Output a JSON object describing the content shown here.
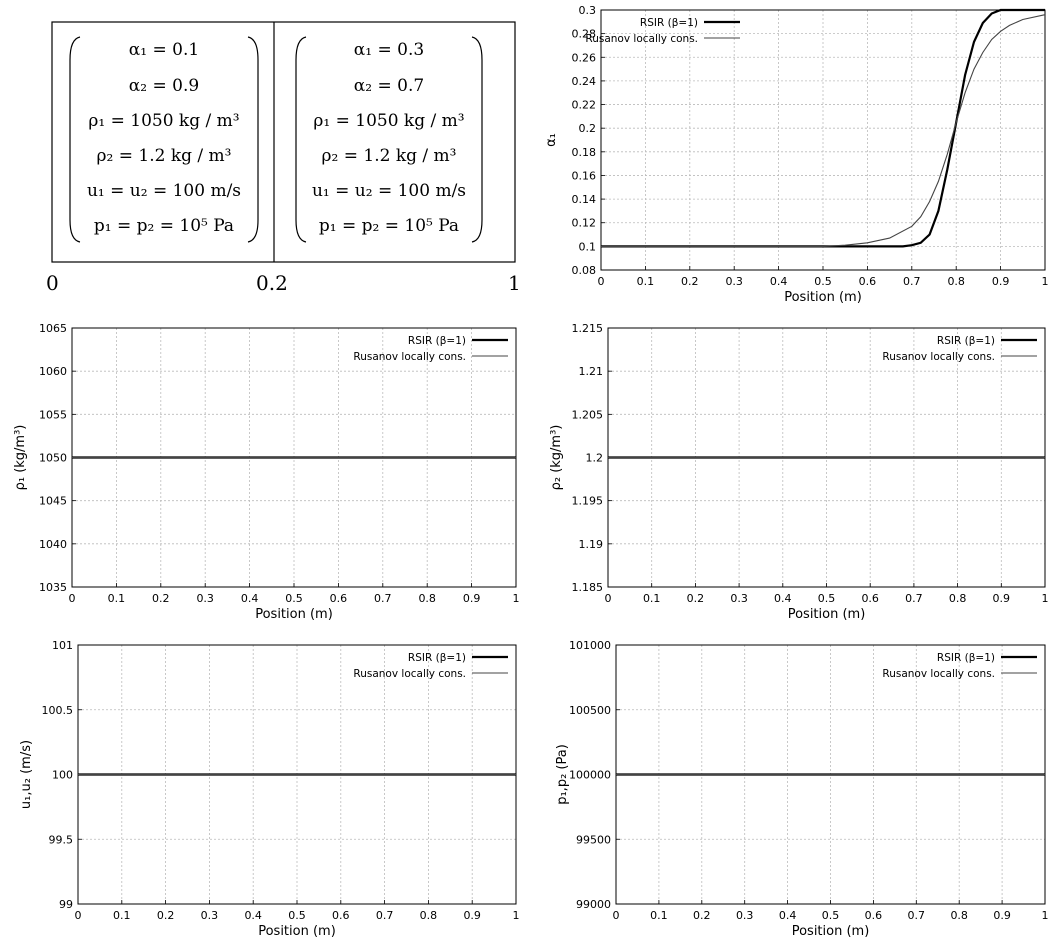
{
  "initial_condition": {
    "left_state": {
      "lines": [
        "α₁ = 0.1",
        "α₂ = 0.9",
        "ρ₁ = 1050 kg / m³",
        "ρ₂ = 1.2 kg / m³",
        "u₁ = u₂ = 100 m/s",
        "p₁ = p₂ = 10⁵ Pa"
      ]
    },
    "right_state": {
      "lines": [
        "α₁ = 0.3",
        "α₂ = 0.7",
        "ρ₁ = 1050 kg / m³",
        "ρ₂ = 1.2 kg / m³",
        "u₁ = u₂ = 100 m/s",
        "p₁ = p₂ = 10⁵ Pa"
      ]
    },
    "positions": [
      "0",
      "0.2",
      "1"
    ]
  },
  "legend": [
    "RSIR (β=1)",
    "Rusanov locally cons."
  ],
  "colors": {
    "rsir": "#000000",
    "rusanov": "#444444",
    "grid": "#bbbbbb"
  },
  "chart_data": [
    {
      "id": "alpha1",
      "type": "line",
      "xlabel": "Position (m)",
      "ylabel": "α₁",
      "xlim": [
        0,
        1
      ],
      "ylim": [
        0.08,
        0.3
      ],
      "xticks": [
        "0",
        "0.1",
        "0.2",
        "0.3",
        "0.4",
        "0.5",
        "0.6",
        "0.7",
        "0.8",
        "0.9",
        "1"
      ],
      "yticks": [
        "0.08",
        "0.1",
        "0.12",
        "0.14",
        "0.16",
        "0.18",
        "0.2",
        "0.22",
        "0.24",
        "0.26",
        "0.28",
        "0.3"
      ],
      "grid": true,
      "legend_position": "top-left",
      "series": [
        {
          "name": "RSIR (β=1)",
          "x": [
            0,
            0.5,
            0.6,
            0.65,
            0.68,
            0.7,
            0.72,
            0.74,
            0.76,
            0.78,
            0.8,
            0.82,
            0.84,
            0.86,
            0.88,
            0.9,
            0.92,
            1
          ],
          "y": [
            0.1,
            0.1,
            0.1,
            0.1,
            0.1,
            0.101,
            0.103,
            0.11,
            0.13,
            0.165,
            0.205,
            0.245,
            0.273,
            0.289,
            0.297,
            0.3,
            0.3,
            0.3
          ]
        },
        {
          "name": "Rusanov locally cons.",
          "x": [
            0,
            0.5,
            0.55,
            0.6,
            0.65,
            0.7,
            0.72,
            0.74,
            0.76,
            0.78,
            0.8,
            0.82,
            0.84,
            0.86,
            0.88,
            0.9,
            0.92,
            0.95,
            1
          ],
          "y": [
            0.1,
            0.1,
            0.101,
            0.103,
            0.107,
            0.117,
            0.125,
            0.138,
            0.155,
            0.178,
            0.205,
            0.23,
            0.25,
            0.264,
            0.275,
            0.282,
            0.287,
            0.292,
            0.296
          ]
        }
      ]
    },
    {
      "id": "rho1",
      "type": "line",
      "xlabel": "Position (m)",
      "ylabel": "ρ₁ (kg/m³)",
      "xlim": [
        0,
        1
      ],
      "ylim": [
        1035,
        1065
      ],
      "xticks": [
        "0",
        "0.1",
        "0.2",
        "0.3",
        "0.4",
        "0.5",
        "0.6",
        "0.7",
        "0.8",
        "0.9",
        "1"
      ],
      "yticks": [
        "1035",
        "1040",
        "1045",
        "1050",
        "1055",
        "1060",
        "1065"
      ],
      "grid": true,
      "legend_position": "top-right",
      "series": [
        {
          "name": "RSIR (β=1)",
          "x": [
            0,
            1
          ],
          "y": [
            1050,
            1050
          ]
        },
        {
          "name": "Rusanov locally cons.",
          "x": [
            0,
            1
          ],
          "y": [
            1050,
            1050
          ]
        }
      ]
    },
    {
      "id": "rho2",
      "type": "line",
      "xlabel": "Position (m)",
      "ylabel": "ρ₂ (kg/m³)",
      "xlim": [
        0,
        1
      ],
      "ylim": [
        1.185,
        1.215
      ],
      "xticks": [
        "0",
        "0.1",
        "0.2",
        "0.3",
        "0.4",
        "0.5",
        "0.6",
        "0.7",
        "0.8",
        "0.9",
        "1"
      ],
      "yticks": [
        "1.185",
        "1.19",
        "1.195",
        "1.2",
        "1.205",
        "1.21",
        "1.215"
      ],
      "grid": true,
      "legend_position": "top-right",
      "series": [
        {
          "name": "RSIR (β=1)",
          "x": [
            0,
            1
          ],
          "y": [
            1.2,
            1.2
          ]
        },
        {
          "name": "Rusanov locally cons.",
          "x": [
            0,
            1
          ],
          "y": [
            1.2,
            1.2
          ]
        }
      ]
    },
    {
      "id": "u",
      "type": "line",
      "xlabel": "Position (m)",
      "ylabel": "u₁,u₂ (m/s)",
      "xlim": [
        0,
        1
      ],
      "ylim": [
        99,
        101
      ],
      "xticks": [
        "0",
        "0.1",
        "0.2",
        "0.3",
        "0.4",
        "0.5",
        "0.6",
        "0.7",
        "0.8",
        "0.9",
        "1"
      ],
      "yticks": [
        "99",
        "99.5",
        "100",
        "100.5",
        "101"
      ],
      "grid": true,
      "legend_position": "top-right",
      "series": [
        {
          "name": "RSIR (β=1)",
          "x": [
            0,
            1
          ],
          "y": [
            100,
            100
          ]
        },
        {
          "name": "Rusanov locally cons.",
          "x": [
            0,
            1
          ],
          "y": [
            100,
            100
          ]
        }
      ]
    },
    {
      "id": "p",
      "type": "line",
      "xlabel": "Position (m)",
      "ylabel": "p₁,p₂ (Pa)",
      "xlim": [
        0,
        1
      ],
      "ylim": [
        99000,
        101000
      ],
      "xticks": [
        "0",
        "0.1",
        "0.2",
        "0.3",
        "0.4",
        "0.5",
        "0.6",
        "0.7",
        "0.8",
        "0.9",
        "1"
      ],
      "yticks": [
        "99000",
        "99500",
        "100000",
        "100500",
        "101000"
      ],
      "grid": true,
      "legend_position": "top-right",
      "series": [
        {
          "name": "RSIR (β=1)",
          "x": [
            0,
            1
          ],
          "y": [
            100000,
            100000
          ]
        },
        {
          "name": "Rusanov locally cons.",
          "x": [
            0,
            1
          ],
          "y": [
            100000,
            100000
          ]
        }
      ]
    }
  ]
}
